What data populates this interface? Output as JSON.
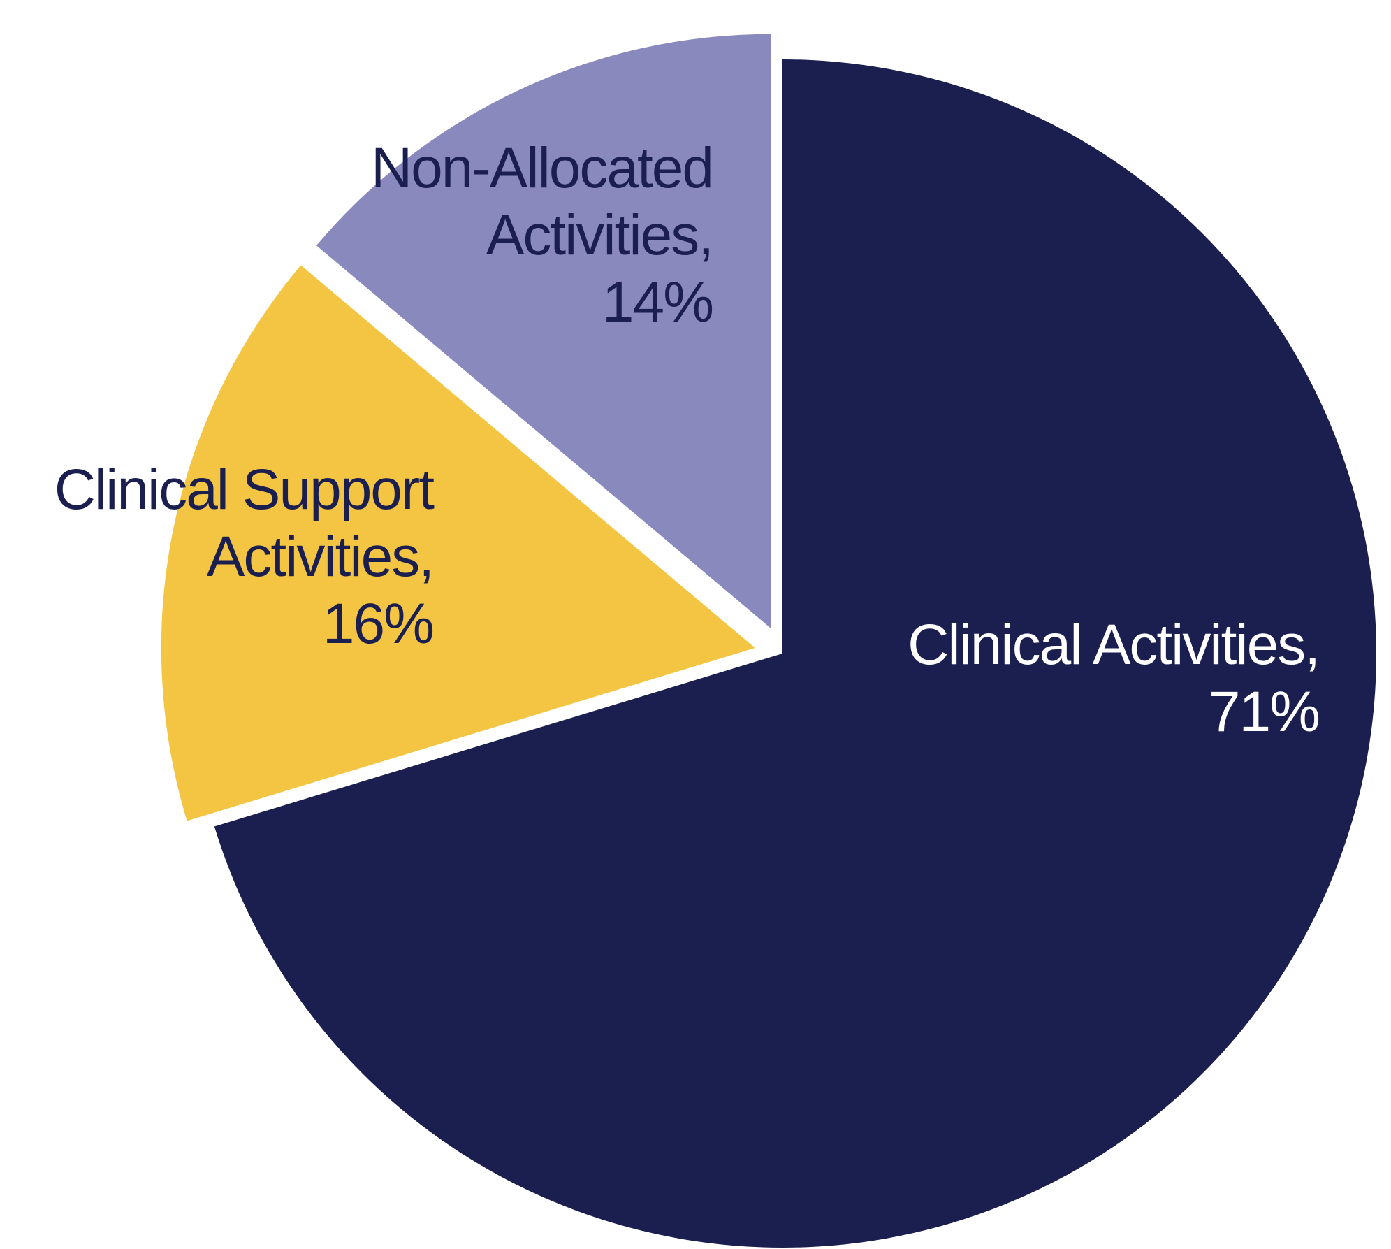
{
  "chart_data": {
    "type": "pie",
    "title": "",
    "slices": [
      {
        "name": "Clinical Activities",
        "label_lines": [
          "Clinical Activities,",
          "71%"
        ],
        "value": 71,
        "color": "#1b1f50",
        "label_color": "#ffffff"
      },
      {
        "name": "Clinical Support Activities",
        "label_lines": [
          "Clinical Support",
          "Activities,",
          "16%"
        ],
        "value": 16,
        "color": "#f4c542",
        "label_color": "#1b1f50"
      },
      {
        "name": "Non-Allocated Activities",
        "label_lines": [
          "Non-Allocated",
          "Activities,",
          "14%"
        ],
        "value": 14,
        "color": "#8a89bd",
        "label_color": "#1b1f50"
      }
    ],
    "start_angle_deg": 0,
    "direction": "clockwise",
    "exploded_slices": [
      "Clinical Support Activities",
      "Non-Allocated Activities"
    ]
  }
}
